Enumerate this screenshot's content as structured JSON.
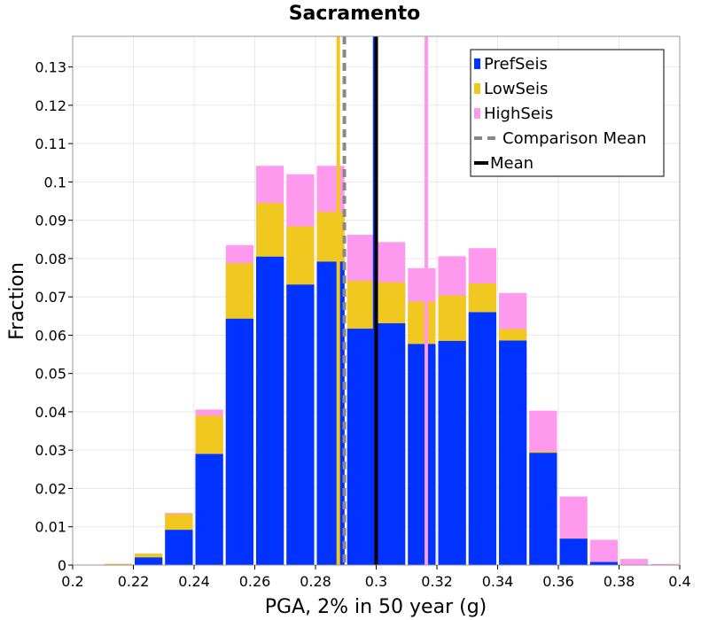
{
  "chart_data": {
    "type": "bar",
    "title": "Sacramento",
    "xlabel": "PGA, 2% in 50 year (g)",
    "ylabel": "Fraction",
    "xlim": [
      0.2,
      0.4
    ],
    "ylim": [
      0,
      0.138
    ],
    "x_ticks": [
      "0.2",
      "0.22",
      "0.24",
      "0.26",
      "0.28",
      "0.3",
      "0.32",
      "0.34",
      "0.36",
      "0.38",
      "0.4"
    ],
    "y_ticks": [
      "0",
      "0.01",
      "0.02",
      "0.03",
      "0.04",
      "0.05",
      "0.06",
      "0.07",
      "0.08",
      "0.09",
      "0.1",
      "0.11",
      "0.12",
      "0.13"
    ],
    "grid": true,
    "bin_width": 0.01,
    "bin_starts": [
      0.21,
      0.22,
      0.23,
      0.24,
      0.25,
      0.26,
      0.27,
      0.28,
      0.29,
      0.3,
      0.31,
      0.32,
      0.33,
      0.34,
      0.35,
      0.36,
      0.37,
      0.38,
      0.39
    ],
    "series": [
      {
        "name": "PrefSeis",
        "color": "#0033ff",
        "values": [
          0.0,
          0.002,
          0.0092,
          0.029,
          0.0643,
          0.0805,
          0.0732,
          0.0792,
          0.0617,
          0.0631,
          0.0577,
          0.0585,
          0.066,
          0.0586,
          0.0293,
          0.0069,
          0.0008,
          0.0,
          0.0
        ]
      },
      {
        "name": "LowSeis",
        "color": "#f0c820",
        "values": [
          0.0003,
          0.003,
          0.0133,
          0.039,
          0.0788,
          0.0945,
          0.0884,
          0.0922,
          0.0742,
          0.0738,
          0.0688,
          0.0704,
          0.0735,
          0.0616,
          0.0297,
          0.007,
          0.0008,
          0.0,
          0.0
        ]
      },
      {
        "name": "HighSeis",
        "color": "#ff99ee",
        "values": [
          0.0003,
          0.003,
          0.0136,
          0.0406,
          0.0835,
          0.1042,
          0.102,
          0.1042,
          0.0862,
          0.0843,
          0.0775,
          0.0806,
          0.0827,
          0.071,
          0.0403,
          0.0179,
          0.0066,
          0.0016,
          0.0003
        ]
      }
    ],
    "vertical_lines": [
      {
        "name": "LowSeis mean",
        "x": 0.2875,
        "color": "#f0c820"
      },
      {
        "name": "Comparison Mean",
        "x": 0.2895,
        "color": "#888888",
        "dashed": true
      },
      {
        "name": "PrefSeis mean",
        "x": 0.2995,
        "color": "#0033ff"
      },
      {
        "name": "Mean",
        "x": 0.3,
        "color": "#000000"
      },
      {
        "name": "HighSeis mean",
        "x": 0.3165,
        "color": "#ff99ee"
      }
    ],
    "legend": {
      "position": "top-right",
      "entries": [
        {
          "label": "PrefSeis",
          "kind": "box",
          "color": "#0033ff"
        },
        {
          "label": "LowSeis",
          "kind": "box",
          "color": "#f0c820"
        },
        {
          "label": "HighSeis",
          "kind": "box",
          "color": "#ff99ee"
        },
        {
          "label": "Comparison Mean",
          "kind": "dashed-line",
          "color": "#888888"
        },
        {
          "label": "Mean",
          "kind": "line",
          "color": "#000000"
        }
      ]
    }
  }
}
